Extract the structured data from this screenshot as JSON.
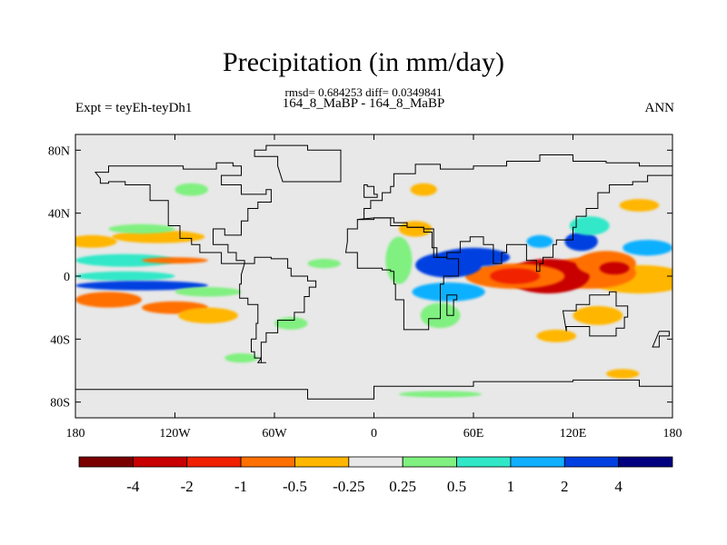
{
  "chart_data": {
    "type": "heatmap",
    "title": "Precipitation (in mm/day)",
    "stats": "rmsd= 0.684253 diff= 0.0349841",
    "subtitle": "164_8_MaBP - 164_8_MaBP",
    "left_label": "Expt = teyEh-teyDh1",
    "right_label": "ANN",
    "xlim": [
      -180,
      180
    ],
    "ylim": [
      -90,
      90
    ],
    "x_ticks": [
      {
        "value": -180,
        "label": "180"
      },
      {
        "value": -120,
        "label": "120W"
      },
      {
        "value": -60,
        "label": "60W"
      },
      {
        "value": 0,
        "label": "0"
      },
      {
        "value": 60,
        "label": "60E"
      },
      {
        "value": 120,
        "label": "120E"
      },
      {
        "value": 180,
        "label": "180"
      }
    ],
    "y_ticks": [
      {
        "value": 80,
        "label": "80N"
      },
      {
        "value": 40,
        "label": "40N"
      },
      {
        "value": 0,
        "label": "0"
      },
      {
        "value": -40,
        "label": "40S"
      },
      {
        "value": -80,
        "label": "80S"
      }
    ],
    "colorbar": {
      "colors": [
        "#7a0000",
        "#c80000",
        "#f02000",
        "#ff7000",
        "#ffb600",
        "#e8e8e8",
        "#80f080",
        "#30e8c8",
        "#10b0ff",
        "#0040e0",
        "#000080"
      ],
      "labels": [
        "-4",
        "-2",
        "-1",
        "-0.5",
        "-0.25",
        "0.25",
        "0.5",
        "1",
        "2",
        "4"
      ]
    },
    "background_color": "#e8e8e8",
    "anomaly_regions": [
      {
        "lon": 160,
        "lat": -2,
        "rlon": 30,
        "rlat": 9,
        "level": 4
      },
      {
        "lon": 130,
        "lat": 2,
        "rlon": 28,
        "rlat": 10,
        "level": 3
      },
      {
        "lon": 105,
        "lat": 0,
        "rlon": 25,
        "rlat": 11,
        "level": 1
      },
      {
        "lon": 85,
        "lat": 0,
        "rlon": 30,
        "rlat": 8,
        "level": 3
      },
      {
        "lon": 85,
        "lat": 0,
        "rlon": 15,
        "rlat": 5,
        "level": 2
      },
      {
        "lon": 140,
        "lat": 8,
        "rlon": 18,
        "rlat": 8,
        "level": 3
      },
      {
        "lon": 145,
        "lat": 5,
        "rlon": 9,
        "rlat": 4,
        "level": 1
      },
      {
        "lon": 125,
        "lat": 22,
        "rlon": 10,
        "rlat": 6,
        "level": 9
      },
      {
        "lon": 100,
        "lat": 22,
        "rlon": 8,
        "rlat": 4,
        "level": 8
      },
      {
        "lon": 130,
        "lat": 32,
        "rlon": 12,
        "rlat": 6,
        "level": 7
      },
      {
        "lon": 165,
        "lat": 18,
        "rlon": 15,
        "rlat": 5,
        "level": 8
      },
      {
        "lon": 160,
        "lat": 45,
        "rlon": 12,
        "rlat": 4,
        "level": 4
      },
      {
        "lon": 135,
        "lat": -25,
        "rlon": 15,
        "rlat": 6,
        "level": 4
      },
      {
        "lon": 110,
        "lat": -38,
        "rlon": 12,
        "rlat": 4,
        "level": 4
      },
      {
        "lon": 45,
        "lat": 7,
        "rlon": 20,
        "rlat": 8,
        "level": 9
      },
      {
        "lon": 60,
        "lat": 12,
        "rlon": 22,
        "rlat": 6,
        "level": 9
      },
      {
        "lon": 45,
        "lat": -10,
        "rlon": 22,
        "rlat": 6,
        "level": 8
      },
      {
        "lon": 40,
        "lat": -25,
        "rlon": 12,
        "rlat": 8,
        "level": 6
      },
      {
        "lon": 25,
        "lat": 30,
        "rlon": 10,
        "rlat": 5,
        "level": 4
      },
      {
        "lon": 30,
        "lat": 55,
        "rlon": 8,
        "rlat": 4,
        "level": 4
      },
      {
        "lon": 15,
        "lat": 10,
        "rlon": 8,
        "rlat": 15,
        "level": 6
      },
      {
        "lon": -170,
        "lat": 22,
        "rlon": 15,
        "rlat": 4,
        "level": 4
      },
      {
        "lon": -130,
        "lat": 25,
        "rlon": 28,
        "rlat": 4,
        "level": 4
      },
      {
        "lon": -150,
        "lat": 10,
        "rlon": 30,
        "rlat": 4,
        "level": 7
      },
      {
        "lon": -120,
        "lat": 10,
        "rlon": 20,
        "rlat": 2,
        "level": 3
      },
      {
        "lon": -150,
        "lat": 0,
        "rlon": 30,
        "rlat": 3,
        "level": 7
      },
      {
        "lon": -140,
        "lat": -6,
        "rlon": 40,
        "rlat": 3,
        "level": 9
      },
      {
        "lon": -160,
        "lat": -15,
        "rlon": 20,
        "rlat": 5,
        "level": 3
      },
      {
        "lon": -120,
        "lat": -20,
        "rlon": 20,
        "rlat": 4,
        "level": 3
      },
      {
        "lon": -100,
        "lat": -25,
        "rlon": 18,
        "rlat": 5,
        "level": 4
      },
      {
        "lon": -100,
        "lat": -10,
        "rlon": 20,
        "rlat": 3,
        "level": 6
      },
      {
        "lon": -30,
        "lat": 8,
        "rlon": 10,
        "rlat": 3,
        "level": 6
      },
      {
        "lon": -140,
        "lat": 30,
        "rlon": 20,
        "rlat": 3,
        "level": 6
      },
      {
        "lon": -50,
        "lat": -30,
        "rlon": 10,
        "rlat": 4,
        "level": 6
      },
      {
        "lon": -80,
        "lat": -52,
        "rlon": 10,
        "rlat": 3,
        "level": 6
      },
      {
        "lon": -110,
        "lat": 55,
        "rlon": 10,
        "rlat": 4,
        "level": 6
      },
      {
        "lon": 150,
        "lat": -62,
        "rlon": 10,
        "rlat": 3,
        "level": 4
      },
      {
        "lon": 40,
        "lat": -75,
        "rlon": 25,
        "rlat": 2,
        "level": 6
      }
    ],
    "land_outlines": [
      [
        [
          -168,
          66
        ],
        [
          -160,
          70
        ],
        [
          -140,
          70
        ],
        [
          -125,
          70
        ],
        [
          -115,
          68
        ],
        [
          -95,
          72
        ],
        [
          -85,
          70
        ],
        [
          -80,
          64
        ],
        [
          -92,
          58
        ],
        [
          -80,
          52
        ],
        [
          -65,
          55
        ],
        [
          -62,
          47
        ],
        [
          -70,
          43
        ],
        [
          -76,
          35
        ],
        [
          -80,
          26
        ],
        [
          -90,
          30
        ],
        [
          -97,
          27
        ],
        [
          -97,
          20
        ],
        [
          -90,
          20
        ],
        [
          -88,
          15
        ],
        [
          -83,
          10
        ],
        [
          -78,
          8
        ],
        [
          -92,
          15
        ],
        [
          -105,
          20
        ],
        [
          -110,
          24
        ],
        [
          -117,
          32
        ],
        [
          -124,
          40
        ],
        [
          -124,
          48
        ],
        [
          -135,
          58
        ],
        [
          -150,
          60
        ],
        [
          -160,
          59
        ],
        [
          -165,
          62
        ]
      ],
      [
        [
          -78,
          8
        ],
        [
          -72,
          12
        ],
        [
          -62,
          11
        ],
        [
          -52,
          5
        ],
        [
          -50,
          0
        ],
        [
          -40,
          -3
        ],
        [
          -35,
          -7
        ],
        [
          -39,
          -13
        ],
        [
          -42,
          -23
        ],
        [
          -48,
          -28
        ],
        [
          -58,
          -36
        ],
        [
          -65,
          -42
        ],
        [
          -68,
          -52
        ],
        [
          -72,
          -48
        ],
        [
          -74,
          -40
        ],
        [
          -71,
          -30
        ],
        [
          -70,
          -18
        ],
        [
          -76,
          -14
        ],
        [
          -81,
          -5
        ],
        [
          -80,
          1
        ]
      ],
      [
        [
          -55,
          60
        ],
        [
          -45,
          60
        ],
        [
          -20,
          70
        ],
        [
          -20,
          80
        ],
        [
          -40,
          83
        ],
        [
          -65,
          80
        ],
        [
          -72,
          76
        ],
        [
          -58,
          70
        ]
      ],
      [
        [
          -10,
          36
        ],
        [
          -6,
          43
        ],
        [
          -2,
          48
        ],
        [
          5,
          53
        ],
        [
          10,
          57
        ],
        [
          12,
          65
        ],
        [
          25,
          71
        ],
        [
          40,
          68
        ],
        [
          60,
          70
        ],
        [
          80,
          73
        ],
        [
          100,
          77
        ],
        [
          120,
          73
        ],
        [
          140,
          72
        ],
        [
          160,
          70
        ],
        [
          180,
          68
        ],
        [
          180,
          64
        ],
        [
          165,
          60
        ],
        [
          156,
          58
        ],
        [
          142,
          53
        ],
        [
          135,
          43
        ],
        [
          128,
          38
        ],
        [
          122,
          31
        ],
        [
          120,
          23
        ],
        [
          110,
          20
        ],
        [
          108,
          12
        ],
        [
          102,
          8
        ],
        [
          100,
          3
        ],
        [
          98,
          10
        ],
        [
          92,
          20
        ],
        [
          80,
          15
        ],
        [
          77,
          8
        ],
        [
          72,
          20
        ],
        [
          66,
          25
        ],
        [
          58,
          22
        ],
        [
          52,
          15
        ],
        [
          44,
          12
        ],
        [
          36,
          30
        ],
        [
          30,
          31
        ],
        [
          20,
          34
        ],
        [
          12,
          37
        ],
        [
          0,
          37
        ]
      ],
      [
        [
          -17,
          15
        ],
        [
          -10,
          5
        ],
        [
          5,
          4
        ],
        [
          10,
          3
        ],
        [
          12,
          -5
        ],
        [
          13,
          -15
        ],
        [
          18,
          -34
        ],
        [
          25,
          -34
        ],
        [
          33,
          -27
        ],
        [
          40,
          -15
        ],
        [
          40,
          -5
        ],
        [
          42,
          0
        ],
        [
          51,
          11
        ],
        [
          44,
          12
        ],
        [
          38,
          18
        ],
        [
          35,
          28
        ],
        [
          30,
          31
        ],
        [
          20,
          32
        ],
        [
          10,
          37
        ],
        [
          0,
          36
        ],
        [
          -10,
          30
        ],
        [
          -16,
          22
        ]
      ],
      [
        [
          114,
          -22
        ],
        [
          122,
          -18
        ],
        [
          130,
          -12
        ],
        [
          137,
          -12
        ],
        [
          142,
          -10
        ],
        [
          146,
          -19
        ],
        [
          153,
          -26
        ],
        [
          151,
          -33
        ],
        [
          146,
          -38
        ],
        [
          140,
          -38
        ],
        [
          130,
          -32
        ],
        [
          116,
          -35
        ]
      ],
      [
        [
          -6,
          50
        ],
        [
          2,
          52
        ],
        [
          0,
          57
        ],
        [
          -4,
          58
        ],
        [
          -6,
          55
        ]
      ],
      [
        [
          44,
          -12
        ],
        [
          50,
          -15
        ],
        [
          48,
          -25
        ],
        [
          44,
          -20
        ]
      ],
      [
        [
          172,
          -35
        ],
        [
          178,
          -38
        ],
        [
          172,
          -45
        ],
        [
          168,
          -45
        ]
      ],
      [
        [
          -70,
          -55
        ],
        [
          -65,
          -55
        ],
        [
          -68,
          -52
        ]
      ],
      [
        [
          -180,
          -72
        ],
        [
          -120,
          -72
        ],
        [
          -60,
          -72
        ],
        [
          -40,
          -78
        ],
        [
          0,
          -70
        ],
        [
          60,
          -67
        ],
        [
          120,
          -66
        ],
        [
          160,
          -70
        ],
        [
          180,
          -78
        ],
        [
          180,
          -90
        ],
        [
          -180,
          -90
        ]
      ]
    ]
  }
}
